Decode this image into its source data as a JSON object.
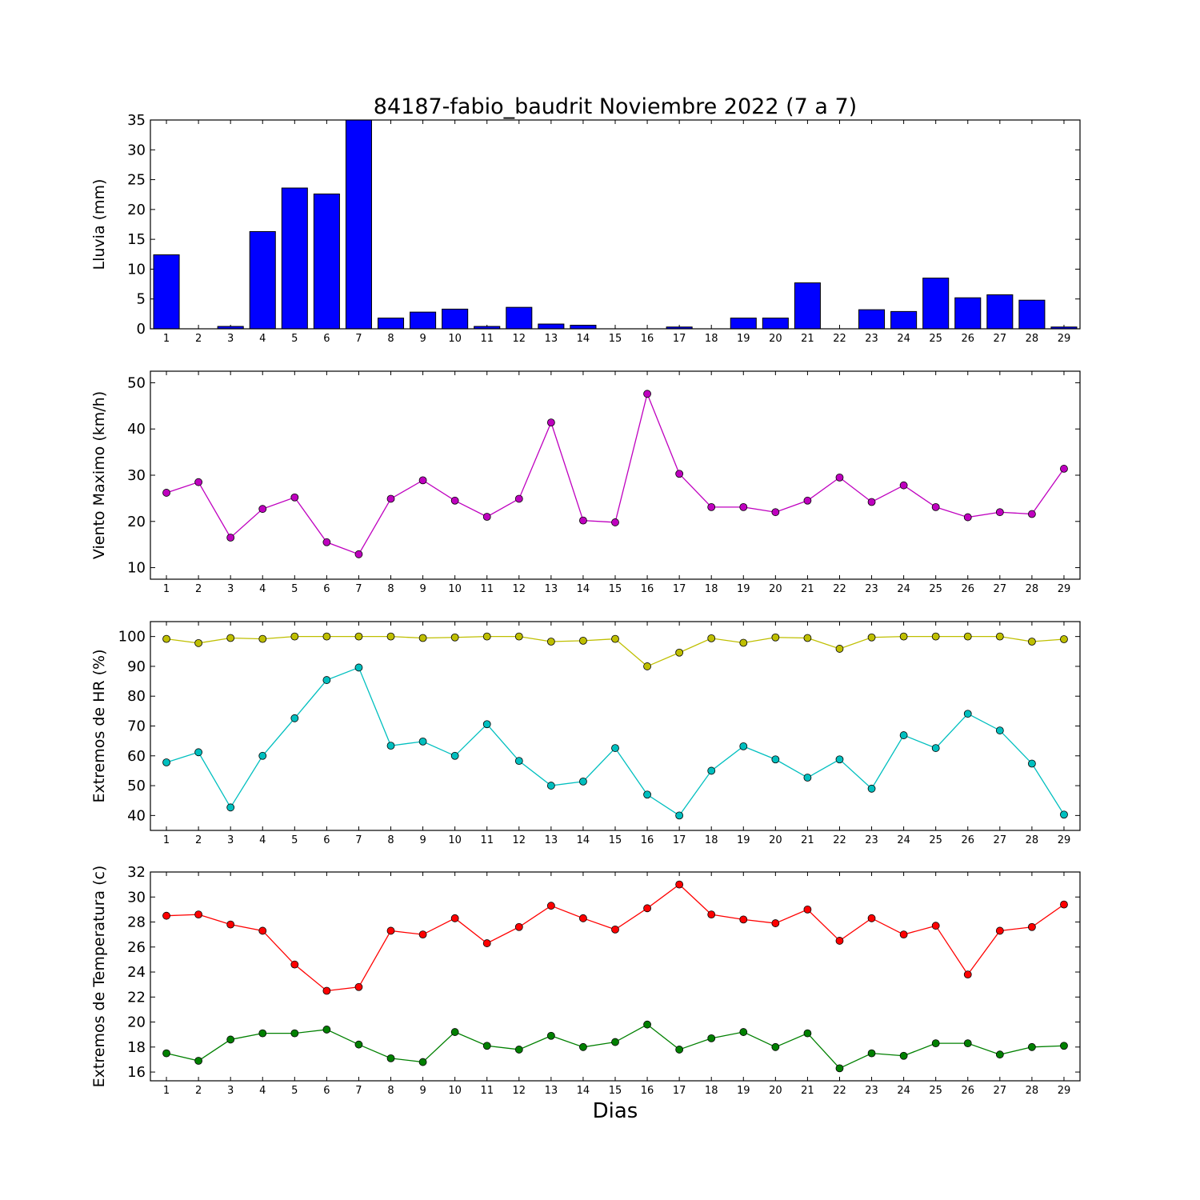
{
  "title": "84187-fabio_baudrit Noviembre 2022  (7 a 7)",
  "xlabel": "Dias",
  "colors": {
    "rain_bar": "#0000ff",
    "wind": "#bf00bf",
    "hr_max": "#bfbf00",
    "hr_min": "#00bfbf",
    "temp_max": "#ff0000",
    "temp_min": "#008000"
  },
  "chart_data": [
    {
      "type": "bar",
      "ylabel": "Lluvia (mm)",
      "categories": [
        "1",
        "2",
        "3",
        "4",
        "5",
        "6",
        "7",
        "8",
        "9",
        "10",
        "11",
        "12",
        "13",
        "14",
        "15",
        "16",
        "17",
        "18",
        "19",
        "20",
        "21",
        "22",
        "23",
        "24",
        "25",
        "26",
        "27",
        "28",
        "29"
      ],
      "ylim": [
        0,
        35
      ],
      "yticks": [
        0,
        5,
        10,
        15,
        20,
        25,
        30,
        35
      ],
      "series": [
        {
          "values": [
            12.4,
            0,
            0.4,
            16.3,
            23.6,
            22.6,
            35,
            1.8,
            2.8,
            3.3,
            0.4,
            3.6,
            0.8,
            0.6,
            0,
            0,
            0.3,
            0,
            1.8,
            1.8,
            7.7,
            0,
            3.2,
            2.9,
            8.5,
            5.2,
            5.7,
            4.8,
            0.3
          ]
        }
      ]
    },
    {
      "type": "line",
      "ylabel": "Viento Maximo (km/h)",
      "categories": [
        "1",
        "2",
        "3",
        "4",
        "5",
        "6",
        "7",
        "8",
        "9",
        "10",
        "11",
        "12",
        "13",
        "14",
        "15",
        "16",
        "17",
        "18",
        "19",
        "20",
        "21",
        "22",
        "23",
        "24",
        "25",
        "26",
        "27",
        "28",
        "29"
      ],
      "ylim": [
        7.5,
        52.5
      ],
      "yticks": [
        10,
        20,
        30,
        40,
        50
      ],
      "series": [
        {
          "values": [
            26.2,
            28.5,
            16.5,
            22.7,
            25.2,
            15.5,
            12.9,
            24.9,
            28.9,
            24.5,
            21.0,
            24.9,
            41.4,
            20.2,
            19.8,
            47.6,
            30.3,
            23.1,
            23.1,
            22.0,
            24.5,
            29.5,
            24.2,
            27.8,
            23.1,
            20.9,
            22.0,
            21.6,
            31.4
          ]
        }
      ]
    },
    {
      "type": "line",
      "ylabel": "Extremos de HR (%)",
      "categories": [
        "1",
        "2",
        "3",
        "4",
        "5",
        "6",
        "7",
        "8",
        "9",
        "10",
        "11",
        "12",
        "13",
        "14",
        "15",
        "16",
        "17",
        "18",
        "19",
        "20",
        "21",
        "22",
        "23",
        "24",
        "25",
        "26",
        "27",
        "28",
        "29"
      ],
      "ylim": [
        35,
        105
      ],
      "yticks": [
        40,
        50,
        60,
        70,
        80,
        90,
        100
      ],
      "series": [
        {
          "values": [
            99.2,
            97.8,
            99.5,
            99.2,
            100,
            100,
            100,
            100,
            99.5,
            99.7,
            100,
            100,
            98.3,
            98.6,
            99.2,
            90,
            94.6,
            99.4,
            97.9,
            99.7,
            99.5,
            95.9,
            99.7,
            100,
            100,
            100,
            100,
            98.3,
            99.1
          ]
        },
        {
          "values": [
            57.8,
            61.2,
            42.7,
            60.0,
            72.6,
            85.4,
            89.6,
            63.4,
            64.8,
            60.0,
            70.6,
            58.3,
            50.0,
            51.4,
            62.6,
            47.0,
            40.0,
            55.0,
            63.2,
            58.8,
            52.7,
            58.8,
            49.0,
            66.9,
            62.6,
            74.1,
            68.5,
            57.4,
            40.3
          ]
        }
      ]
    },
    {
      "type": "line",
      "ylabel": "Extremos de Temperatura (c)",
      "categories": [
        "1",
        "2",
        "3",
        "4",
        "5",
        "6",
        "7",
        "8",
        "9",
        "10",
        "11",
        "12",
        "13",
        "14",
        "15",
        "16",
        "17",
        "18",
        "19",
        "20",
        "21",
        "22",
        "23",
        "24",
        "25",
        "26",
        "27",
        "28",
        "29"
      ],
      "ylim": [
        15.3,
        32
      ],
      "yticks": [
        16,
        18,
        20,
        22,
        24,
        26,
        28,
        30,
        32
      ],
      "series": [
        {
          "values": [
            28.5,
            28.6,
            27.8,
            27.3,
            24.6,
            22.5,
            22.8,
            27.3,
            27.0,
            28.3,
            26.3,
            27.6,
            29.3,
            28.3,
            27.4,
            29.1,
            31.0,
            28.6,
            28.2,
            27.9,
            29.0,
            26.5,
            28.3,
            27.0,
            27.7,
            23.8,
            27.3,
            27.6,
            29.4
          ]
        },
        {
          "values": [
            17.5,
            16.9,
            18.6,
            19.1,
            19.1,
            19.4,
            18.2,
            17.1,
            16.8,
            19.2,
            18.1,
            17.8,
            18.9,
            18.0,
            18.4,
            19.8,
            17.8,
            18.7,
            19.2,
            18.0,
            19.1,
            16.3,
            17.5,
            17.3,
            18.3,
            18.3,
            17.4,
            18.0,
            18.1
          ]
        }
      ]
    }
  ]
}
